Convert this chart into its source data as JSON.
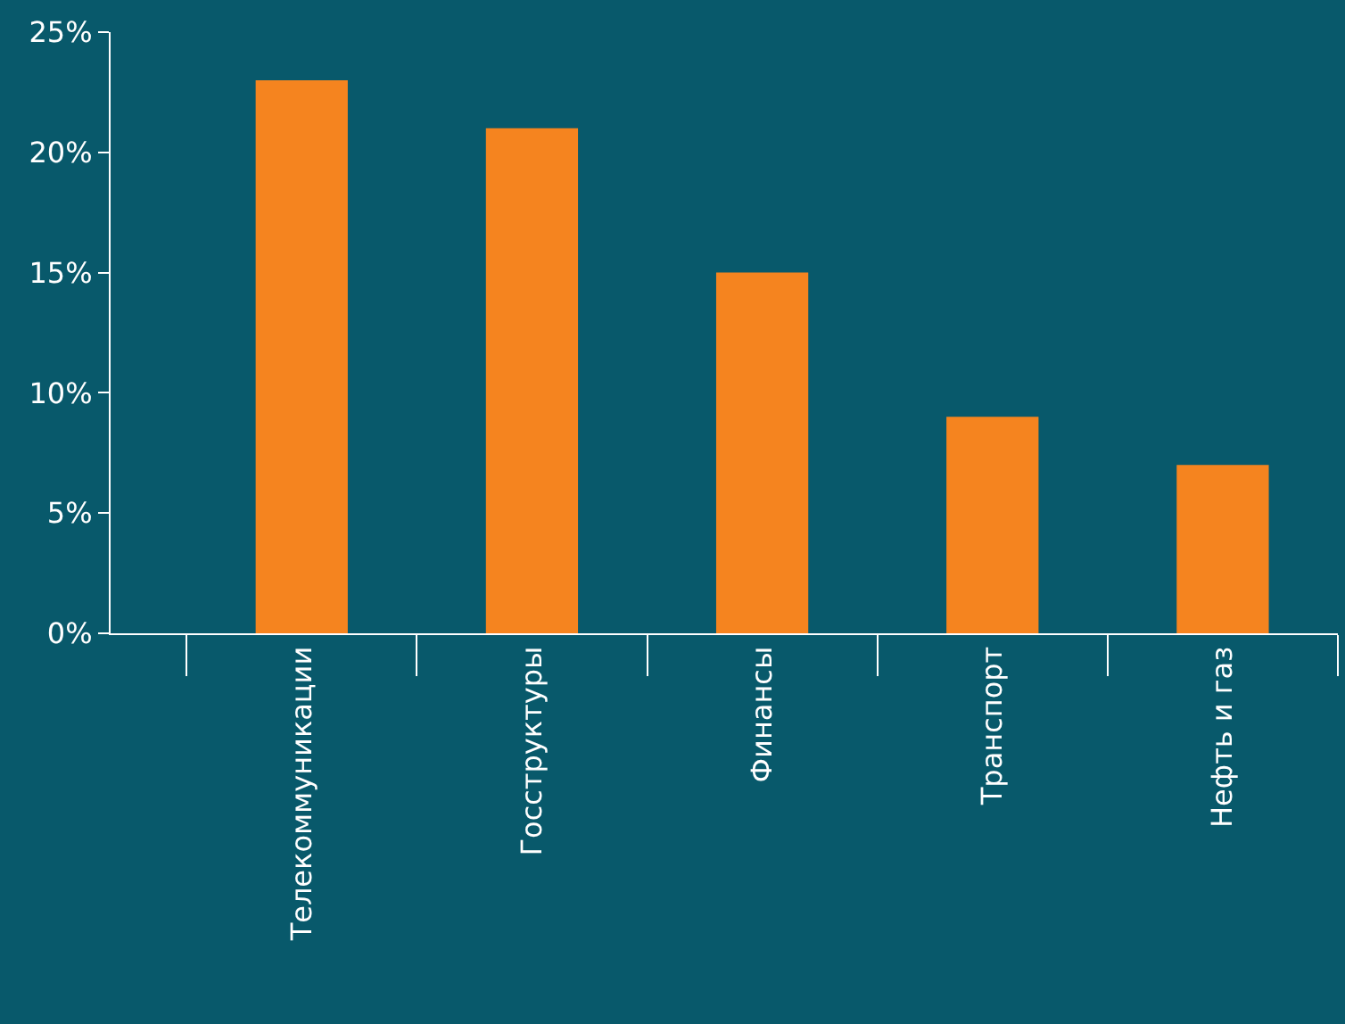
{
  "chart_data": {
    "type": "bar",
    "categories": [
      "Телекоммуникации",
      "Госструктуры",
      "Финансы",
      "Транспорт",
      "Нефть и газ"
    ],
    "values": [
      23,
      21,
      15,
      9,
      7
    ],
    "color": "#f5841f",
    "ylim": [
      0,
      25
    ],
    "yticks": [
      {
        "value": 0,
        "label": "0%"
      },
      {
        "value": 5,
        "label": "5%"
      },
      {
        "value": 10,
        "label": "10%"
      },
      {
        "value": 15,
        "label": "15%"
      },
      {
        "value": 20,
        "label": "20%"
      },
      {
        "value": 25,
        "label": "25%"
      }
    ],
    "grid": false,
    "legend": false
  }
}
